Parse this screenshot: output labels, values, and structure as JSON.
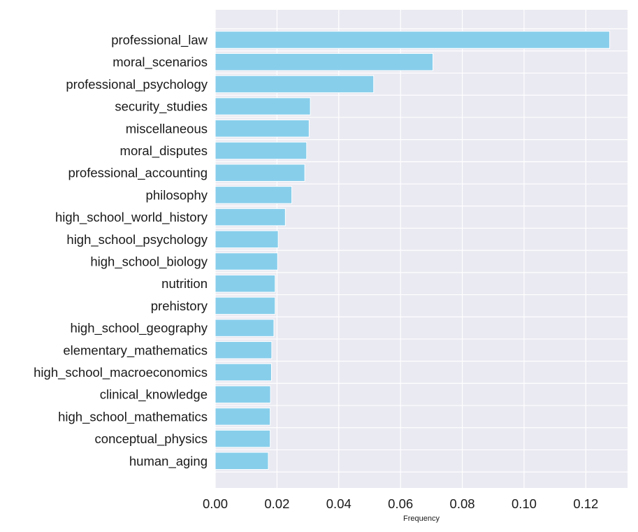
{
  "chart_data": {
    "type": "bar",
    "orientation": "horizontal",
    "categories": [
      "professional_law",
      "moral_scenarios",
      "professional_psychology",
      "security_studies",
      "miscellaneous",
      "moral_disputes",
      "professional_accounting",
      "philosophy",
      "high_school_world_history",
      "high_school_psychology",
      "high_school_biology",
      "nutrition",
      "prehistory",
      "high_school_geography",
      "elementary_mathematics",
      "high_school_macroeconomics",
      "clinical_knowledge",
      "high_school_mathematics",
      "conceptual_physics",
      "human_aging"
    ],
    "values": [
      0.1277,
      0.0705,
      0.0513,
      0.0308,
      0.0304,
      0.0296,
      0.029,
      0.0248,
      0.0227,
      0.0204,
      0.0202,
      0.0194,
      0.0194,
      0.019,
      0.0183,
      0.0182,
      0.0179,
      0.0178,
      0.0178,
      0.0172
    ],
    "title": "",
    "xlabel": "Frequency",
    "ylabel": "",
    "xlim": [
      0,
      0.1335
    ],
    "xticks": [
      0.0,
      0.02,
      0.04,
      0.06,
      0.08,
      0.1,
      0.12
    ],
    "xtick_labels": [
      "0.00",
      "0.02",
      "0.04",
      "0.06",
      "0.08",
      "0.10",
      "0.12"
    ],
    "grid": true,
    "legend": "none",
    "colors": {
      "bar": "#87ceeb",
      "bar_edge": "#ffffff",
      "plot_background": "#eaeaf2",
      "grid": "#ffffff",
      "text": "#1a1a1a"
    }
  }
}
